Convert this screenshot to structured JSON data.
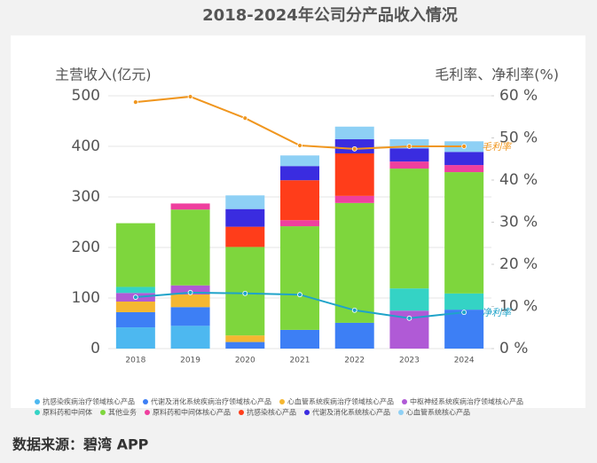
{
  "chart_data": {
    "type": "bar",
    "stacked": true,
    "title": "2018-2024年公司分产品收入情况",
    "y_label": "主营收入(亿元)",
    "y2_label": "毛利率、净利率(%)",
    "source": "数据来源：碧湾 APP",
    "categories": [
      "2018",
      "2019",
      "2020",
      "2021",
      "2022",
      "2023",
      "2024"
    ],
    "ylim": [
      0,
      500
    ],
    "yticks": [
      0,
      100,
      200,
      300,
      400,
      500
    ],
    "y2lim": [
      0,
      60
    ],
    "y2ticks": [
      {
        "value": 0,
        "label": "0 %"
      },
      {
        "value": 10,
        "label": "10 %"
      },
      {
        "value": 20,
        "label": "20 %"
      },
      {
        "value": 30,
        "label": "30 %"
      },
      {
        "value": 40,
        "label": "40 %"
      },
      {
        "value": 50,
        "label": "50 %"
      },
      {
        "value": 60,
        "label": "60 %"
      }
    ],
    "grid": true,
    "series": [
      {
        "name": "抗感染疾病治疗领域核心产品",
        "color": "#4db8f0",
        "values": [
          42,
          45,
          0,
          0,
          0,
          0,
          0
        ]
      },
      {
        "name": "代谢及消化系统疾病治疗领域核心产品",
        "color": "#3d7ff5",
        "values": [
          30,
          37,
          13,
          37,
          51,
          0,
          77
        ]
      },
      {
        "name": "心血管系统疾病治疗领域核心产品",
        "color": "#f5b731",
        "values": [
          21,
          25,
          13,
          0,
          0,
          0,
          0
        ]
      },
      {
        "name": "中枢神经系统疾病治疗领域核心产品",
        "color": "#b05ad6",
        "values": [
          17,
          18,
          0,
          0,
          0,
          75,
          0
        ]
      },
      {
        "name": "原料药和中间体",
        "color": "#34d3c5",
        "values": [
          12,
          0,
          0,
          0,
          0,
          44,
          32
        ]
      },
      {
        "name": "其他业务",
        "color": "#7ed63d",
        "values": [
          126,
          150,
          175,
          205,
          237,
          237,
          240
        ]
      },
      {
        "name": "原料药和中间体核心产品",
        "color": "#ef3f9e",
        "values": [
          0,
          12,
          0,
          12,
          14,
          14,
          14
        ]
      },
      {
        "name": "抗感染核心产品",
        "color": "#ff3d1a",
        "values": [
          0,
          0,
          40,
          79,
          84,
          0,
          0
        ]
      },
      {
        "name": "代谢及消化系统核心产品",
        "color": "#3a2ce0",
        "values": [
          0,
          0,
          35,
          28,
          28,
          26,
          26
        ]
      },
      {
        "name": "心血管系统核心产品",
        "color": "#8ed0f5",
        "values": [
          0,
          0,
          27,
          21,
          25,
          18,
          21
        ]
      },
      {
        "name": "毛利率",
        "type": "line",
        "axis": "y2",
        "color": "#f0961e",
        "values": [
          58.5,
          59.8,
          54.7,
          48.2,
          47.4,
          48,
          48
        ]
      },
      {
        "name": "净利率",
        "type": "line",
        "axis": "y2",
        "color": "#1fa3c9",
        "values": [
          12.2,
          13.3,
          13.1,
          12.8,
          9.1,
          7.2,
          8.6
        ]
      }
    ]
  }
}
